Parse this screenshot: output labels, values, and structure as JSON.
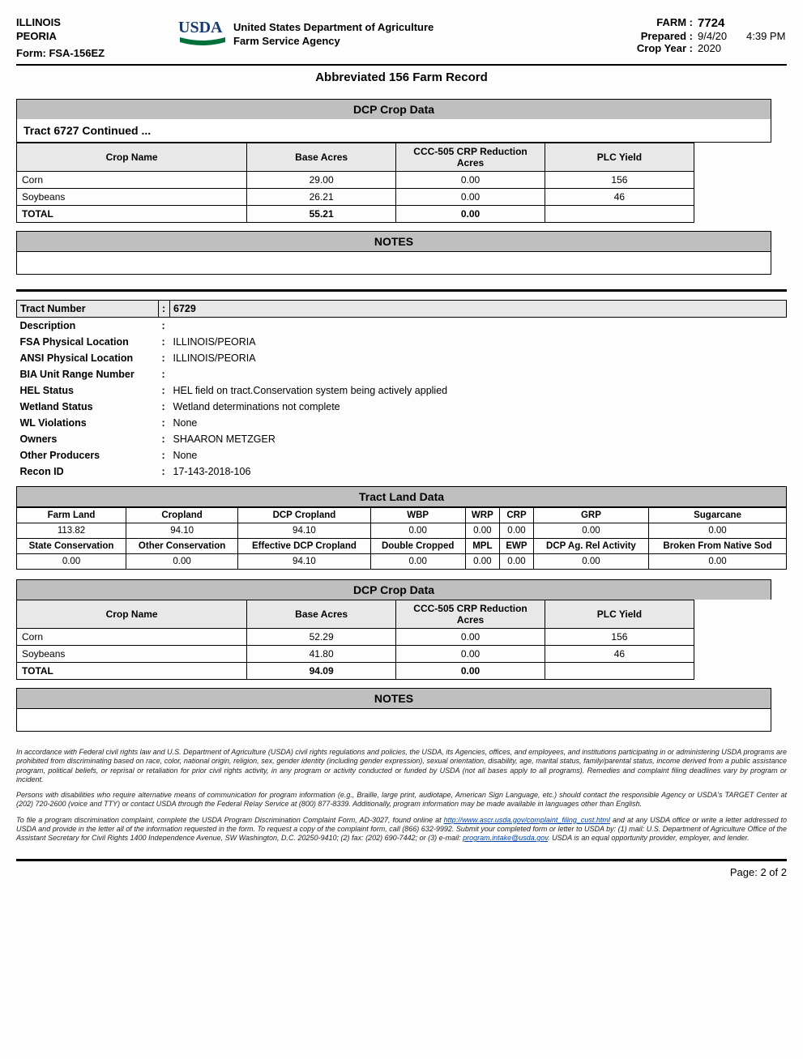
{
  "header": {
    "state": "ILLINOIS",
    "county": "PEORIA",
    "form": "Form:   FSA-156EZ",
    "dept_line1": "United States Department of Agriculture",
    "dept_line2": "Farm Service Agency",
    "subtitle": "Abbreviated 156 Farm Record",
    "farm_label": "FARM :",
    "farm_value": "7724",
    "prepared_label": "Prepared :",
    "prepared_date": "9/4/20",
    "prepared_time": "4:39 PM",
    "cropyear_label": "Crop Year :",
    "cropyear_value": "2020"
  },
  "logo": {
    "text": "USDA",
    "color": "#00703c"
  },
  "section1": {
    "bar": "DCP Crop Data",
    "tract_cont": "Tract 6727 Continued ...",
    "headers": [
      "Crop Name",
      "Base Acres",
      "CCC-505 CRP Reduction Acres",
      "PLC Yield"
    ],
    "rows": [
      [
        "Corn",
        "29.00",
        "0.00",
        "156"
      ],
      [
        "Soybeans",
        "26.21",
        "0.00",
        "46"
      ]
    ],
    "total": [
      "TOTAL",
      "55.21",
      "0.00",
      ""
    ]
  },
  "notes_label": "NOTES",
  "tract2": {
    "tract_number_label": "Tract Number",
    "tract_number_value": "6729",
    "fields": [
      {
        "label": "Description",
        "value": ""
      },
      {
        "label": "FSA Physical Location",
        "value": "ILLINOIS/PEORIA"
      },
      {
        "label": "ANSI Physical Location",
        "value": "ILLINOIS/PEORIA"
      },
      {
        "label": "BIA Unit Range Number",
        "value": ""
      },
      {
        "label": "HEL Status",
        "value": "HEL field on tract.Conservation system being actively applied"
      },
      {
        "label": "Wetland Status",
        "value": "Wetland determinations not complete"
      },
      {
        "label": "WL Violations",
        "value": "None"
      },
      {
        "label": "Owners",
        "value": "SHAARON METZGER"
      },
      {
        "label": "Other Producers",
        "value": "None"
      },
      {
        "label": "Recon ID",
        "value": "17-143-2018-106"
      }
    ]
  },
  "land": {
    "bar": "Tract Land Data",
    "headers1": [
      "Farm Land",
      "Cropland",
      "DCP Cropland",
      "WBP",
      "WRP",
      "CRP",
      "GRP",
      "Sugarcane"
    ],
    "row1": [
      "113.82",
      "94.10",
      "94.10",
      "0.00",
      "0.00",
      "0.00",
      "0.00",
      "0.00"
    ],
    "headers2": [
      "State Conservation",
      "Other Conservation",
      "Effective DCP Cropland",
      "Double Cropped",
      "MPL",
      "EWP",
      "DCP Ag. Rel Activity",
      "Broken From Native Sod"
    ],
    "row2": [
      "0.00",
      "0.00",
      "94.10",
      "0.00",
      "0.00",
      "0.00",
      "0.00",
      "0.00"
    ]
  },
  "section3": {
    "bar": "DCP Crop Data",
    "headers": [
      "Crop Name",
      "Base Acres",
      "CCC-505 CRP Reduction Acres",
      "PLC Yield"
    ],
    "rows": [
      [
        "Corn",
        "52.29",
        "0.00",
        "156"
      ],
      [
        "Soybeans",
        "41.80",
        "0.00",
        "46"
      ]
    ],
    "total": [
      "TOTAL",
      "94.09",
      "0.00",
      ""
    ]
  },
  "disclaimer": {
    "p1": "In accordance with Federal civil rights law and U.S. Department of Agriculture (USDA) civil rights regulations and policies, the USDA, its Agencies, offices, and employees, and institutions participating in or administering USDA programs are prohibited from discriminating based on race, color, national origin, religion, sex, gender identity (including gender expression), sexual orientation, disability, age, marital status, family/parental status, income derived from a public assistance program, political beliefs, or reprisal or retaliation for prior civil rights activity, in any program or activity conducted or funded by USDA (not all bases apply to all programs). Remedies and complaint filing deadlines vary by program or incident.",
    "p2": "Persons with disabilities who require alternative means of communication for program information (e.g., Braille, large print, audiotape, American Sign Language, etc.) should contact the responsible Agency or USDA's TARGET Center at (202) 720-2600 (voice and TTY) or contact USDA through the Federal Relay Service at (800) 877-8339. Additionally, program information may be made available in languages other than English.",
    "p3a": "To file a program discrimination complaint, complete the USDA Program Discrimination Complaint Form, AD-3027, found online at ",
    "link1": "http://www.ascr.usda.gov/complaint_filing_cust.html",
    "p3b": " and at any USDA office or write a letter addressed to USDA and provide in the letter all of the information requested in the form. To request a copy of the complaint form, call (866) 632-9992. Submit your completed form or letter to USDA by: (1) mail: U.S. Department of Agriculture Office of the Assistant Secretary for Civil Rights 1400 Independence Avenue, SW Washington, D.C. 20250-9410; (2) fax: (202) 690-7442; or (3) e-mail: ",
    "link2": "program.intake@usda.gov",
    "p3c": ". USDA is an equal opportunity provider, employer, and lender."
  },
  "page": "Page: 2 of 2"
}
